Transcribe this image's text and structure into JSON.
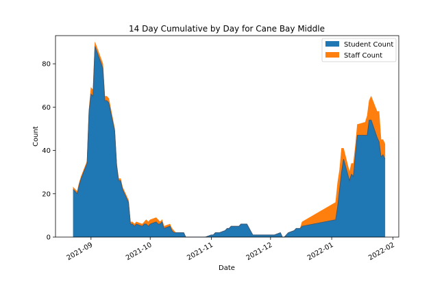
{
  "chart_data": {
    "type": "area",
    "stacked": true,
    "title": "14 Day Cumulative by Day for Cane Bay Middle",
    "xlabel": "Date",
    "ylabel": "Count",
    "xlim": [
      "2021-08-14",
      "2022-02-04"
    ],
    "ylim": [
      0,
      93
    ],
    "x_ticks": [
      "2021-09-01",
      "2021-10-01",
      "2021-11-01",
      "2021-12-01",
      "2022-01-01",
      "2022-02-01"
    ],
    "x_tick_labels": [
      "2021-09",
      "2021-10",
      "2021-11",
      "2021-12",
      "2022-01",
      "2022-02"
    ],
    "y_ticks": [
      0,
      20,
      40,
      60,
      80
    ],
    "y_tick_labels": [
      "0",
      "20",
      "40",
      "60",
      "80"
    ],
    "grid": false,
    "legend_position": "top-right",
    "colors": {
      "student": "#1f77b4",
      "staff": "#ff7f0e",
      "line": "#3a5a78"
    },
    "x": [
      "2021-08-23",
      "2021-08-24",
      "2021-08-25",
      "2021-08-26",
      "2021-08-27",
      "2021-08-30",
      "2021-08-31",
      "2021-09-01",
      "2021-09-02",
      "2021-09-03",
      "2021-09-07",
      "2021-09-08",
      "2021-09-09",
      "2021-09-10",
      "2021-09-13",
      "2021-09-14",
      "2021-09-15",
      "2021-09-16",
      "2021-09-17",
      "2021-09-20",
      "2021-09-21",
      "2021-09-22",
      "2021-09-23",
      "2021-09-24",
      "2021-09-27",
      "2021-09-28",
      "2021-09-29",
      "2021-09-30",
      "2021-10-01",
      "2021-10-04",
      "2021-10-05",
      "2021-10-06",
      "2021-10-07",
      "2021-10-08",
      "2021-10-11",
      "2021-10-12",
      "2021-10-13",
      "2021-10-14",
      "2021-10-15",
      "2021-10-18",
      "2021-10-19",
      "2021-10-20",
      "2021-10-21",
      "2021-10-22",
      "2021-10-25",
      "2021-10-26",
      "2021-10-27",
      "2021-10-28",
      "2021-10-29",
      "2021-11-01",
      "2021-11-02",
      "2021-11-03",
      "2021-11-04",
      "2021-11-05",
      "2021-11-08",
      "2021-11-09",
      "2021-11-10",
      "2021-11-11",
      "2021-11-12",
      "2021-11-15",
      "2021-11-16",
      "2021-11-17",
      "2021-11-18",
      "2021-11-19",
      "2021-11-22",
      "2021-11-29",
      "2021-11-30",
      "2021-12-01",
      "2021-12-02",
      "2021-12-03",
      "2021-12-06",
      "2021-12-07",
      "2021-12-08",
      "2021-12-09",
      "2021-12-10",
      "2021-12-13",
      "2021-12-14",
      "2021-12-15",
      "2021-12-16",
      "2021-12-17",
      "2022-01-03",
      "2022-01-04",
      "2022-01-05",
      "2022-01-06",
      "2022-01-07",
      "2022-01-10",
      "2022-01-11",
      "2022-01-12",
      "2022-01-13",
      "2022-01-14",
      "2022-01-18",
      "2022-01-19",
      "2022-01-20",
      "2022-01-21",
      "2022-01-24",
      "2022-01-25",
      "2022-01-26",
      "2022-01-27",
      "2022-01-28"
    ],
    "series": [
      {
        "name": "Student Count",
        "values": [
          22,
          21,
          20,
          24,
          27,
          34,
          58,
          66,
          65,
          88,
          78,
          63,
          63,
          62,
          49,
          33,
          26,
          26,
          22,
          16,
          6,
          6,
          5,
          6,
          5,
          6,
          6,
          5,
          6,
          7,
          6,
          6,
          7,
          4,
          5,
          3,
          2,
          2,
          2,
          2,
          0,
          0,
          0,
          0,
          0,
          0,
          0,
          0,
          0,
          1,
          1,
          2,
          2,
          2,
          3,
          4,
          4,
          5,
          5,
          5,
          6,
          6,
          6,
          6,
          1,
          1,
          1,
          1,
          1,
          1,
          2,
          0,
          0,
          1,
          2,
          3,
          4,
          4,
          4,
          5,
          8,
          14,
          22,
          30,
          36,
          26,
          29,
          28,
          38,
          47,
          47,
          47,
          54,
          54,
          46,
          44,
          37,
          38,
          36
        ],
        "legend": "Student Count"
      },
      {
        "name": "Staff Count",
        "values": [
          1,
          1,
          1,
          1,
          1,
          1,
          1,
          3,
          3,
          2,
          2,
          2,
          2,
          2,
          1,
          1,
          1,
          1,
          1,
          1,
          1,
          1,
          1,
          1,
          1,
          1,
          2,
          2,
          2,
          2,
          2,
          1,
          1,
          1,
          1,
          1,
          1,
          0,
          0,
          0,
          0,
          0,
          0,
          0,
          0,
          0,
          0,
          0,
          0,
          0,
          0,
          0,
          0,
          0,
          0,
          0,
          0,
          0,
          0,
          0,
          0,
          0,
          0,
          0,
          0,
          0,
          0,
          0,
          0,
          0,
          0,
          0,
          0,
          0,
          0,
          0,
          0,
          0,
          0,
          2,
          8,
          11,
          9,
          11,
          5,
          4,
          5,
          6,
          4,
          5,
          6,
          9,
          9,
          11,
          12,
          14,
          8,
          7,
          7
        ],
        "legend": "Staff Count"
      }
    ]
  }
}
